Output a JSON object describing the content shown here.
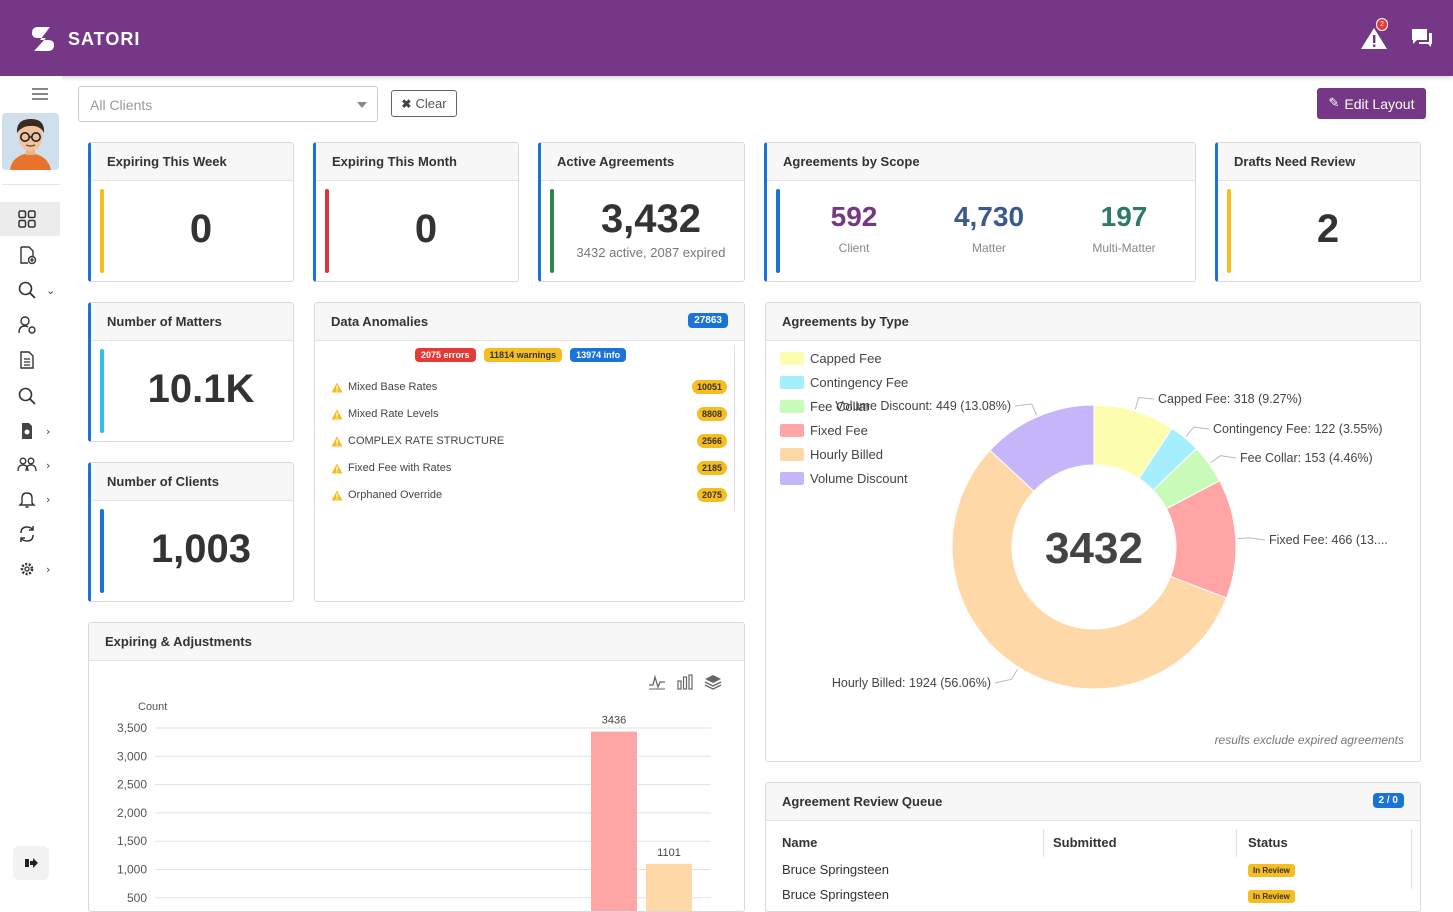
{
  "app": {
    "name": "SATORI",
    "alert_badge": "2"
  },
  "filter": {
    "client_placeholder": "All Clients",
    "clear_label": "Clear",
    "edit_layout_label": "Edit Layout"
  },
  "cards": {
    "expiring_week": {
      "title": "Expiring This Week",
      "value": "0"
    },
    "expiring_month": {
      "title": "Expiring This Month",
      "value": "0"
    },
    "active": {
      "title": "Active Agreements",
      "value": "3,432",
      "sub": "3432 active, 2087 expired"
    },
    "scope": {
      "title": "Agreements by Scope",
      "items": [
        {
          "value": "592",
          "label": "Client",
          "color": "#763786"
        },
        {
          "value": "4,730",
          "label": "Matter",
          "color": "#3b5a8c"
        },
        {
          "value": "197",
          "label": "Multi-Matter",
          "color": "#2c7a6a"
        }
      ]
    },
    "drafts": {
      "title": "Drafts Need Review",
      "value": "2"
    },
    "matters": {
      "title": "Number of Matters",
      "value": "10.1K"
    },
    "clients": {
      "title": "Number of Clients",
      "value": "1,003"
    }
  },
  "anomalies": {
    "title": "Data Anomalies",
    "total": "27863",
    "errors": "2075 errors",
    "warnings": "11814 warnings",
    "info": "13974 info",
    "rows": [
      {
        "label": "Mixed Base Rates",
        "count": "10051"
      },
      {
        "label": "Mixed Rate Levels",
        "count": "8808"
      },
      {
        "label": "COMPLEX RATE STRUCTURE",
        "count": "2566"
      },
      {
        "label": "Fixed Fee with Rates",
        "count": "2185"
      },
      {
        "label": "Orphaned Override",
        "count": "2075"
      }
    ]
  },
  "expiring_chart": {
    "title": "Expiring & Adjustments"
  },
  "chart_data": [
    {
      "type": "bar",
      "ylabel": "Count",
      "ylim": [
        0,
        3500
      ],
      "yticks": [
        "3,500",
        "3,000",
        "2,500",
        "2,000",
        "1,500",
        "1,000",
        "500"
      ],
      "bars": [
        {
          "value": 3436,
          "label": "3436",
          "color": "#ffa5a5"
        },
        {
          "value": 1101,
          "label": "1101",
          "color": "#ffd8a8"
        }
      ]
    },
    {
      "type": "pie",
      "title": "Agreements by Type",
      "center_label": "3432",
      "slices": [
        {
          "name": "Capped Fee",
          "value": 318,
          "label": "Capped Fee: 318 (9.27%)",
          "color": "#fdfdb0"
        },
        {
          "name": "Contingency Fee",
          "value": 122,
          "label": "Contingency Fee: 122 (3.55%)",
          "color": "#a5eefd"
        },
        {
          "name": "Fee Collar",
          "value": 153,
          "label": "Fee Collar: 153 (4.46%)",
          "color": "#c8fbb9"
        },
        {
          "name": "Fixed Fee",
          "value": 466,
          "label": "Fixed Fee: 466 (13....",
          "color": "#ffa5a5"
        },
        {
          "name": "Hourly Billed",
          "value": 1924,
          "label": "Hourly Billed: 1924 (56.06%)",
          "color": "#ffd8a8"
        },
        {
          "name": "Volume Discount",
          "value": 449,
          "label": "Volume Discount: 449 (13.08%)",
          "color": "#c4b6f8"
        }
      ],
      "note": "results exclude expired agreements"
    }
  ],
  "review_queue": {
    "title": "Agreement Review Queue",
    "badge": "2 / 0",
    "columns": [
      "Name",
      "Submitted",
      "Status"
    ],
    "rows": [
      {
        "name": "Bruce Springsteen",
        "status": "In Review"
      },
      {
        "name": "Bruce Springsteen",
        "status": "In Review"
      }
    ]
  }
}
